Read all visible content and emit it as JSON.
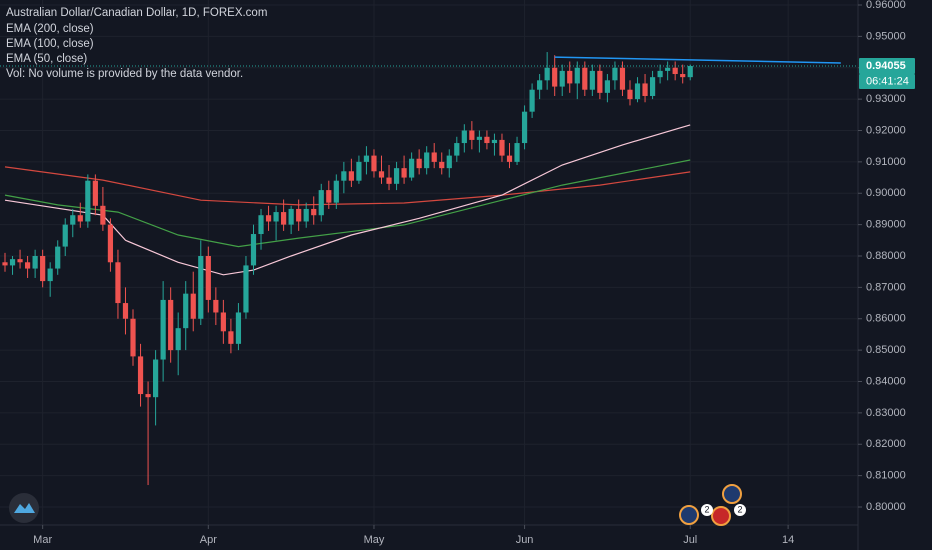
{
  "chart_data": {
    "type": "candlestick",
    "title": "Australian Dollar/Canadian Dollar, 1D, FOREX.com",
    "volume_note": "Vol: No volume is provided by the data vendor.",
    "up_color": "#26a69a",
    "down_color": "#ef5350",
    "grid": true,
    "ylim": [
      0.8,
      0.96
    ],
    "yticks": [
      {
        "value": 0.96,
        "label": "0.96000"
      },
      {
        "value": 0.95,
        "label": "0.95000"
      },
      {
        "value": 0.94,
        "label": "0.94000"
      },
      {
        "value": 0.93,
        "label": "0.93000"
      },
      {
        "value": 0.92,
        "label": "0.92000"
      },
      {
        "value": 0.91,
        "label": "0.91000"
      },
      {
        "value": 0.9,
        "label": "0.90000"
      },
      {
        "value": 0.89,
        "label": "0.89000"
      },
      {
        "value": 0.88,
        "label": "0.88000"
      },
      {
        "value": 0.87,
        "label": "0.87000"
      },
      {
        "value": 0.86,
        "label": "0.86000"
      },
      {
        "value": 0.85,
        "label": "0.85000"
      },
      {
        "value": 0.84,
        "label": "0.84000"
      },
      {
        "value": 0.83,
        "label": "0.83000"
      },
      {
        "value": 0.82,
        "label": "0.82000"
      },
      {
        "value": 0.81,
        "label": "0.81000"
      },
      {
        "value": 0.8,
        "label": "0.80000"
      }
    ],
    "xlim": [
      0,
      113
    ],
    "xticks": [
      {
        "value": 5,
        "label": "Mar"
      },
      {
        "value": 27,
        "label": "Apr"
      },
      {
        "value": 49,
        "label": "May"
      },
      {
        "value": 69,
        "label": "Jun"
      },
      {
        "value": 91,
        "label": "Jul"
      },
      {
        "value": 104,
        "label": "14"
      }
    ],
    "ohlc": [
      [
        0.878,
        0.881,
        0.875,
        0.877
      ],
      [
        0.877,
        0.88,
        0.874,
        0.879
      ],
      [
        0.879,
        0.882,
        0.876,
        0.878
      ],
      [
        0.878,
        0.88,
        0.873,
        0.876
      ],
      [
        0.876,
        0.882,
        0.873,
        0.88
      ],
      [
        0.88,
        0.882,
        0.87,
        0.872
      ],
      [
        0.872,
        0.878,
        0.867,
        0.876
      ],
      [
        0.876,
        0.885,
        0.874,
        0.883
      ],
      [
        0.883,
        0.892,
        0.88,
        0.89
      ],
      [
        0.89,
        0.895,
        0.886,
        0.893
      ],
      [
        0.893,
        0.897,
        0.889,
        0.891
      ],
      [
        0.891,
        0.906,
        0.889,
        0.904
      ],
      [
        0.904,
        0.906,
        0.893,
        0.896
      ],
      [
        0.896,
        0.902,
        0.888,
        0.89
      ],
      [
        0.89,
        0.892,
        0.875,
        0.878
      ],
      [
        0.878,
        0.882,
        0.86,
        0.865
      ],
      [
        0.865,
        0.87,
        0.855,
        0.86
      ],
      [
        0.86,
        0.863,
        0.845,
        0.848
      ],
      [
        0.848,
        0.852,
        0.832,
        0.836
      ],
      [
        0.836,
        0.84,
        0.807,
        0.835
      ],
      [
        0.835,
        0.85,
        0.826,
        0.847
      ],
      [
        0.847,
        0.872,
        0.84,
        0.866
      ],
      [
        0.866,
        0.87,
        0.846,
        0.85
      ],
      [
        0.85,
        0.862,
        0.842,
        0.857
      ],
      [
        0.857,
        0.872,
        0.85,
        0.868
      ],
      [
        0.868,
        0.875,
        0.856,
        0.86
      ],
      [
        0.86,
        0.885,
        0.858,
        0.88
      ],
      [
        0.88,
        0.883,
        0.862,
        0.866
      ],
      [
        0.866,
        0.87,
        0.858,
        0.862
      ],
      [
        0.862,
        0.866,
        0.852,
        0.856
      ],
      [
        0.856,
        0.86,
        0.849,
        0.852
      ],
      [
        0.852,
        0.865,
        0.85,
        0.862
      ],
      [
        0.862,
        0.88,
        0.86,
        0.877
      ],
      [
        0.877,
        0.89,
        0.874,
        0.887
      ],
      [
        0.887,
        0.895,
        0.882,
        0.893
      ],
      [
        0.893,
        0.896,
        0.888,
        0.891
      ],
      [
        0.891,
        0.896,
        0.885,
        0.894
      ],
      [
        0.894,
        0.898,
        0.888,
        0.89
      ],
      [
        0.89,
        0.896,
        0.887,
        0.895
      ],
      [
        0.895,
        0.898,
        0.888,
        0.891
      ],
      [
        0.891,
        0.897,
        0.889,
        0.895
      ],
      [
        0.895,
        0.899,
        0.89,
        0.893
      ],
      [
        0.893,
        0.903,
        0.891,
        0.901
      ],
      [
        0.901,
        0.904,
        0.895,
        0.897
      ],
      [
        0.897,
        0.906,
        0.895,
        0.904
      ],
      [
        0.904,
        0.91,
        0.9,
        0.907
      ],
      [
        0.907,
        0.911,
        0.902,
        0.904
      ],
      [
        0.904,
        0.912,
        0.903,
        0.91
      ],
      [
        0.91,
        0.915,
        0.906,
        0.912
      ],
      [
        0.912,
        0.914,
        0.905,
        0.907
      ],
      [
        0.907,
        0.912,
        0.903,
        0.905
      ],
      [
        0.905,
        0.909,
        0.901,
        0.903
      ],
      [
        0.903,
        0.91,
        0.901,
        0.908
      ],
      [
        0.908,
        0.912,
        0.903,
        0.905
      ],
      [
        0.905,
        0.913,
        0.904,
        0.911
      ],
      [
        0.911,
        0.914,
        0.906,
        0.908
      ],
      [
        0.908,
        0.915,
        0.906,
        0.913
      ],
      [
        0.913,
        0.916,
        0.908,
        0.91
      ],
      [
        0.91,
        0.913,
        0.906,
        0.908
      ],
      [
        0.908,
        0.914,
        0.905,
        0.912
      ],
      [
        0.912,
        0.918,
        0.91,
        0.916
      ],
      [
        0.916,
        0.922,
        0.913,
        0.92
      ],
      [
        0.92,
        0.923,
        0.914,
        0.917
      ],
      [
        0.917,
        0.92,
        0.913,
        0.918
      ],
      [
        0.918,
        0.92,
        0.914,
        0.916
      ],
      [
        0.916,
        0.919,
        0.912,
        0.917
      ],
      [
        0.917,
        0.919,
        0.91,
        0.912
      ],
      [
        0.912,
        0.916,
        0.908,
        0.91
      ],
      [
        0.91,
        0.918,
        0.909,
        0.916
      ],
      [
        0.916,
        0.928,
        0.914,
        0.926
      ],
      [
        0.926,
        0.935,
        0.924,
        0.933
      ],
      [
        0.933,
        0.938,
        0.93,
        0.936
      ],
      [
        0.936,
        0.945,
        0.933,
        0.94
      ],
      [
        0.94,
        0.944,
        0.931,
        0.934
      ],
      [
        0.934,
        0.941,
        0.931,
        0.939
      ],
      [
        0.939,
        0.942,
        0.932,
        0.935
      ],
      [
        0.935,
        0.942,
        0.93,
        0.94
      ],
      [
        0.94,
        0.942,
        0.931,
        0.933
      ],
      [
        0.933,
        0.941,
        0.931,
        0.939
      ],
      [
        0.939,
        0.941,
        0.93,
        0.932
      ],
      [
        0.932,
        0.938,
        0.929,
        0.936
      ],
      [
        0.936,
        0.942,
        0.933,
        0.94
      ],
      [
        0.94,
        0.942,
        0.931,
        0.933
      ],
      [
        0.933,
        0.936,
        0.928,
        0.93
      ],
      [
        0.93,
        0.937,
        0.929,
        0.935
      ],
      [
        0.935,
        0.938,
        0.929,
        0.931
      ],
      [
        0.931,
        0.939,
        0.93,
        0.937
      ],
      [
        0.937,
        0.941,
        0.935,
        0.939
      ],
      [
        0.939,
        0.942,
        0.936,
        0.94
      ],
      [
        0.94,
        0.942,
        0.936,
        0.938
      ],
      [
        0.938,
        0.941,
        0.935,
        0.937
      ],
      [
        0.937,
        0.941,
        0.936,
        0.94055
      ]
    ],
    "series": [
      {
        "name": "EMA (200, close)",
        "color": "#d4483f",
        "x": [
          0,
          13,
          26,
          39,
          53,
          66,
          79,
          91
        ],
        "values": [
          0.9084,
          0.9042,
          0.8978,
          0.8963,
          0.8969,
          0.8994,
          0.9026,
          0.9068
        ]
      },
      {
        "name": "EMA (100, close)",
        "color": "#43a047",
        "x": [
          0,
          7,
          15,
          23,
          31,
          39,
          53,
          66,
          74,
          91
        ],
        "values": [
          0.8994,
          0.8963,
          0.894,
          0.8867,
          0.883,
          0.8857,
          0.8899,
          0.8978,
          0.9026,
          0.9106
        ]
      },
      {
        "name": "EMA (50, close)",
        "color": "#f8c8d8",
        "x": [
          0,
          13,
          16,
          23,
          29,
          33,
          38,
          46,
          55,
          66,
          74,
          82,
          91
        ],
        "values": [
          0.8978,
          0.893,
          0.885,
          0.878,
          0.874,
          0.8755,
          0.88,
          0.8867,
          0.892,
          0.8994,
          0.909,
          0.9154,
          0.9218
        ]
      }
    ],
    "trendline": {
      "color": "#2196f3",
      "x": [
        73,
        111
      ],
      "values": [
        0.9434,
        0.9415
      ]
    },
    "countdown": "06:41:24",
    "event_badges": [
      "2",
      "2"
    ]
  }
}
